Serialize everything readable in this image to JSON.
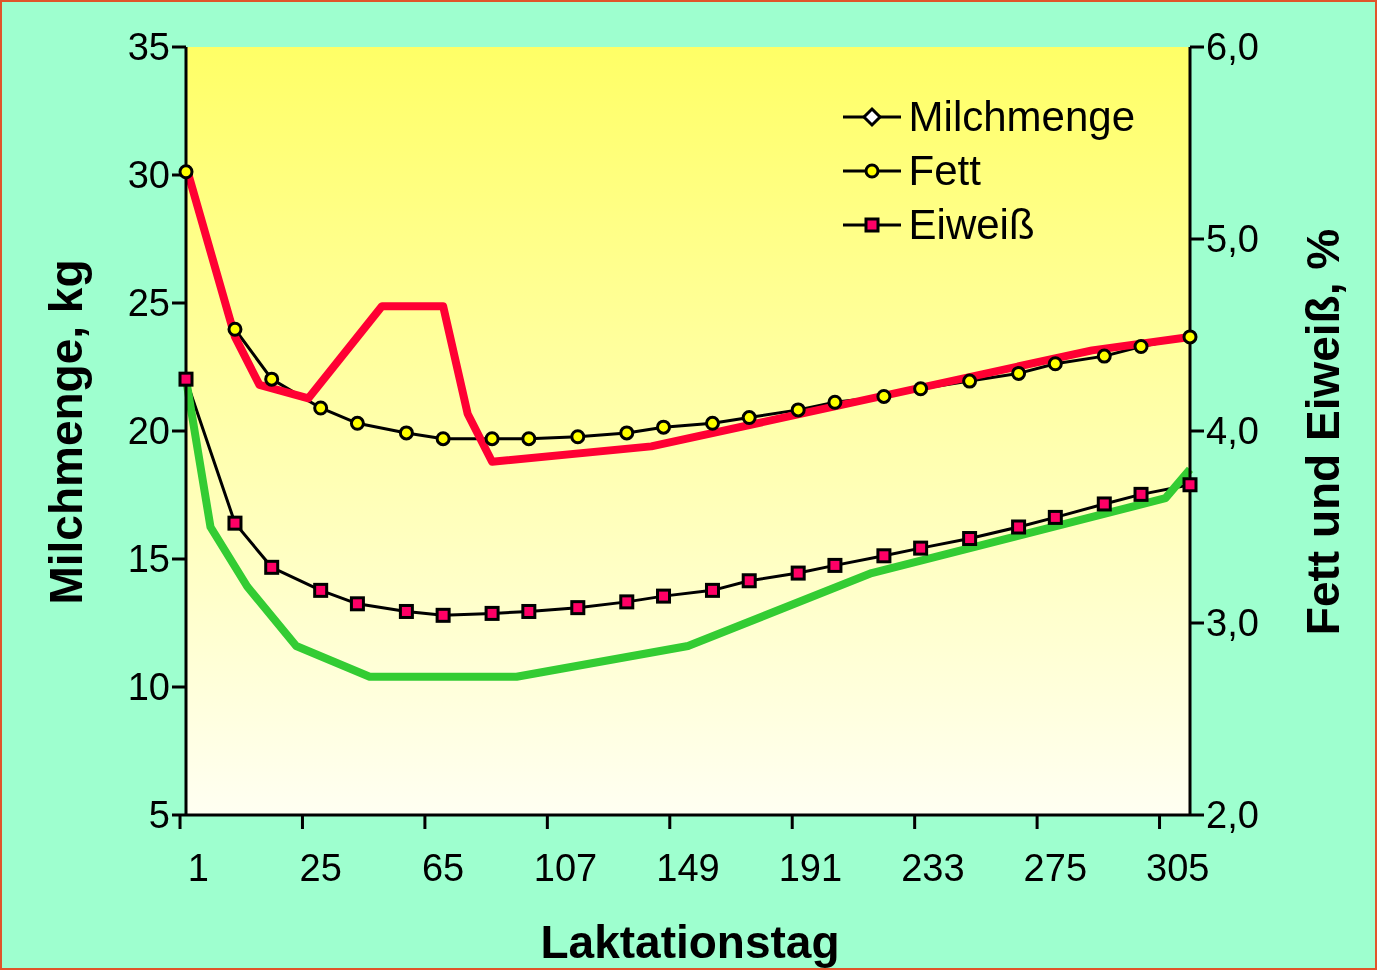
{
  "chart_data": {
    "type": "line",
    "xlabel": "Laktationstag",
    "ylabel": "Milchmenge, kg",
    "y2label": "Fett und Eiweiß, %",
    "categories": [
      null,
      "1",
      null,
      null,
      null,
      null,
      null,
      null,
      null,
      null,
      null,
      "25",
      null,
      null,
      null,
      null,
      null,
      null,
      null,
      null,
      null,
      "65",
      null,
      null,
      null,
      null,
      null,
      null,
      null,
      null,
      null,
      "107",
      null,
      null,
      null,
      null,
      null,
      null,
      null,
      null,
      null,
      "149",
      null,
      null,
      null,
      null,
      null,
      null,
      null,
      null,
      null,
      "191",
      null,
      null,
      null,
      null,
      null,
      null,
      null,
      null,
      null,
      "233",
      null,
      null,
      null,
      null,
      null,
      null,
      null,
      null,
      null,
      "275",
      null,
      null,
      null,
      null,
      null,
      null,
      null,
      null,
      null,
      "305",
      null
    ],
    "ylim": [
      5,
      35
    ],
    "yticks": [
      5,
      10,
      15,
      20,
      25,
      30,
      35
    ],
    "y2lim": [
      2,
      6
    ],
    "y2ticks": [
      {
        "value": 2,
        "label": "2,0"
      },
      {
        "value": 3,
        "label": "3,0"
      },
      {
        "value": 4,
        "label": "4,0"
      },
      {
        "value": 5,
        "label": "5,0"
      },
      {
        "value": 6,
        "label": "6,0"
      }
    ],
    "legend": "top right",
    "series": [
      {
        "name": "Milchmenge",
        "color": "#ffffff",
        "marker": "diamond",
        "values": [
          null,
          null,
          null,
          null,
          null,
          null,
          null,
          null,
          null,
          null,
          null,
          null,
          null,
          null,
          null,
          null,
          null,
          null,
          null,
          null,
          null,
          null,
          null,
          null,
          null,
          null,
          null,
          null,
          null,
          null,
          null,
          null,
          null,
          null,
          null,
          null,
          null,
          null,
          null,
          null,
          null,
          null,
          null,
          null,
          null,
          null,
          null,
          null,
          null,
          null,
          null,
          null,
          null,
          null,
          null,
          null,
          null,
          null,
          null,
          null,
          null,
          null,
          null,
          null,
          null,
          null,
          null,
          null,
          null,
          null,
          null,
          null,
          null,
          null,
          null,
          null,
          null,
          null,
          null,
          null,
          null,
          null,
          null
        ]
      },
      {
        "name": "Fett",
        "color": "#ffff00",
        "marker": "circle",
        "axis": "y2",
        "values": [
          5.35,
          null,
          null,
          null,
          4.53,
          null,
          null,
          4.27,
          null,
          null,
          null,
          4.12,
          null,
          null,
          4.04,
          null,
          null,
          null,
          3.99,
          null,
          null,
          3.96,
          null,
          null,
          null,
          3.96,
          null,
          null,
          3.96,
          null,
          null,
          null,
          3.97,
          null,
          null,
          null,
          3.99,
          null,
          null,
          4.02,
          null,
          null,
          null,
          4.04,
          null,
          null,
          4.07,
          null,
          null,
          null,
          4.11,
          null,
          null,
          4.15,
          null,
          null,
          null,
          4.18,
          null,
          null,
          4.22,
          null,
          null,
          null,
          4.26,
          null,
          null,
          null,
          4.3,
          null,
          null,
          4.35,
          null,
          null,
          null,
          4.39,
          null,
          null,
          4.44,
          null,
          null,
          null,
          4.49
        ]
      },
      {
        "name": "Eiweiß",
        "color": "#ff0066",
        "marker": "square",
        "axis": "y2",
        "values": [
          4.27,
          null,
          null,
          null,
          3.52,
          null,
          null,
          3.29,
          null,
          null,
          null,
          3.17,
          null,
          null,
          3.1,
          null,
          null,
          null,
          3.06,
          null,
          null,
          3.04,
          null,
          null,
          null,
          3.05,
          null,
          null,
          3.06,
          null,
          null,
          null,
          3.08,
          null,
          null,
          null,
          3.11,
          null,
          null,
          3.14,
          null,
          null,
          null,
          3.17,
          null,
          null,
          3.22,
          null,
          null,
          null,
          3.26,
          null,
          null,
          3.3,
          null,
          null,
          null,
          3.35,
          null,
          null,
          3.39,
          null,
          null,
          null,
          3.44,
          null,
          null,
          null,
          3.5,
          null,
          null,
          3.55,
          null,
          null,
          null,
          3.62,
          null,
          null,
          3.67,
          null,
          null,
          null,
          3.72
        ]
      },
      {
        "color": "#ff0033",
        "marker": "none",
        "axis": "y2",
        "values": [
          5.38,
          null,
          null,
          null,
          4.49,
          null,
          4.24,
          null,
          null,
          null,
          4.17,
          null,
          null,
          null,
          null,
          null,
          4.65,
          null,
          null,
          null,
          null,
          4.65,
          null,
          4.09,
          null,
          3.84,
          null,
          null,
          null,
          null,
          null,
          null,
          null,
          null,
          null,
          null,
          null,
          null,
          3.92,
          null,
          null,
          null,
          null,
          null,
          null,
          null,
          null,
          null,
          null,
          null,
          null,
          null,
          null,
          null,
          null,
          null,
          null,
          null,
          null,
          null,
          null,
          null,
          null,
          null,
          null,
          null,
          null,
          null,
          null,
          null,
          null,
          null,
          null,
          null,
          4.42,
          null,
          null,
          null,
          null,
          null,
          null,
          null,
          4.49
        ]
      },
      {
        "color": "#33cc33",
        "marker": "none",
        "axis": "y2",
        "values": [
          4.27,
          null,
          3.5,
          null,
          null,
          3.19,
          null,
          null,
          null,
          2.88,
          null,
          null,
          null,
          null,
          null,
          2.72,
          null,
          null,
          null,
          null,
          null,
          null,
          null,
          null,
          null,
          null,
          null,
          2.72,
          null,
          null,
          null,
          null,
          null,
          null,
          null,
          null,
          null,
          null,
          null,
          null,
          null,
          2.88,
          null,
          null,
          null,
          null,
          null,
          null,
          null,
          null,
          null,
          null,
          null,
          null,
          null,
          null,
          3.26,
          null,
          null,
          null,
          null,
          null,
          null,
          null,
          null,
          null,
          null,
          null,
          null,
          null,
          null,
          null,
          null,
          null,
          null,
          null,
          null,
          null,
          null,
          null,
          3.65,
          null,
          3.8
        ]
      }
    ]
  }
}
